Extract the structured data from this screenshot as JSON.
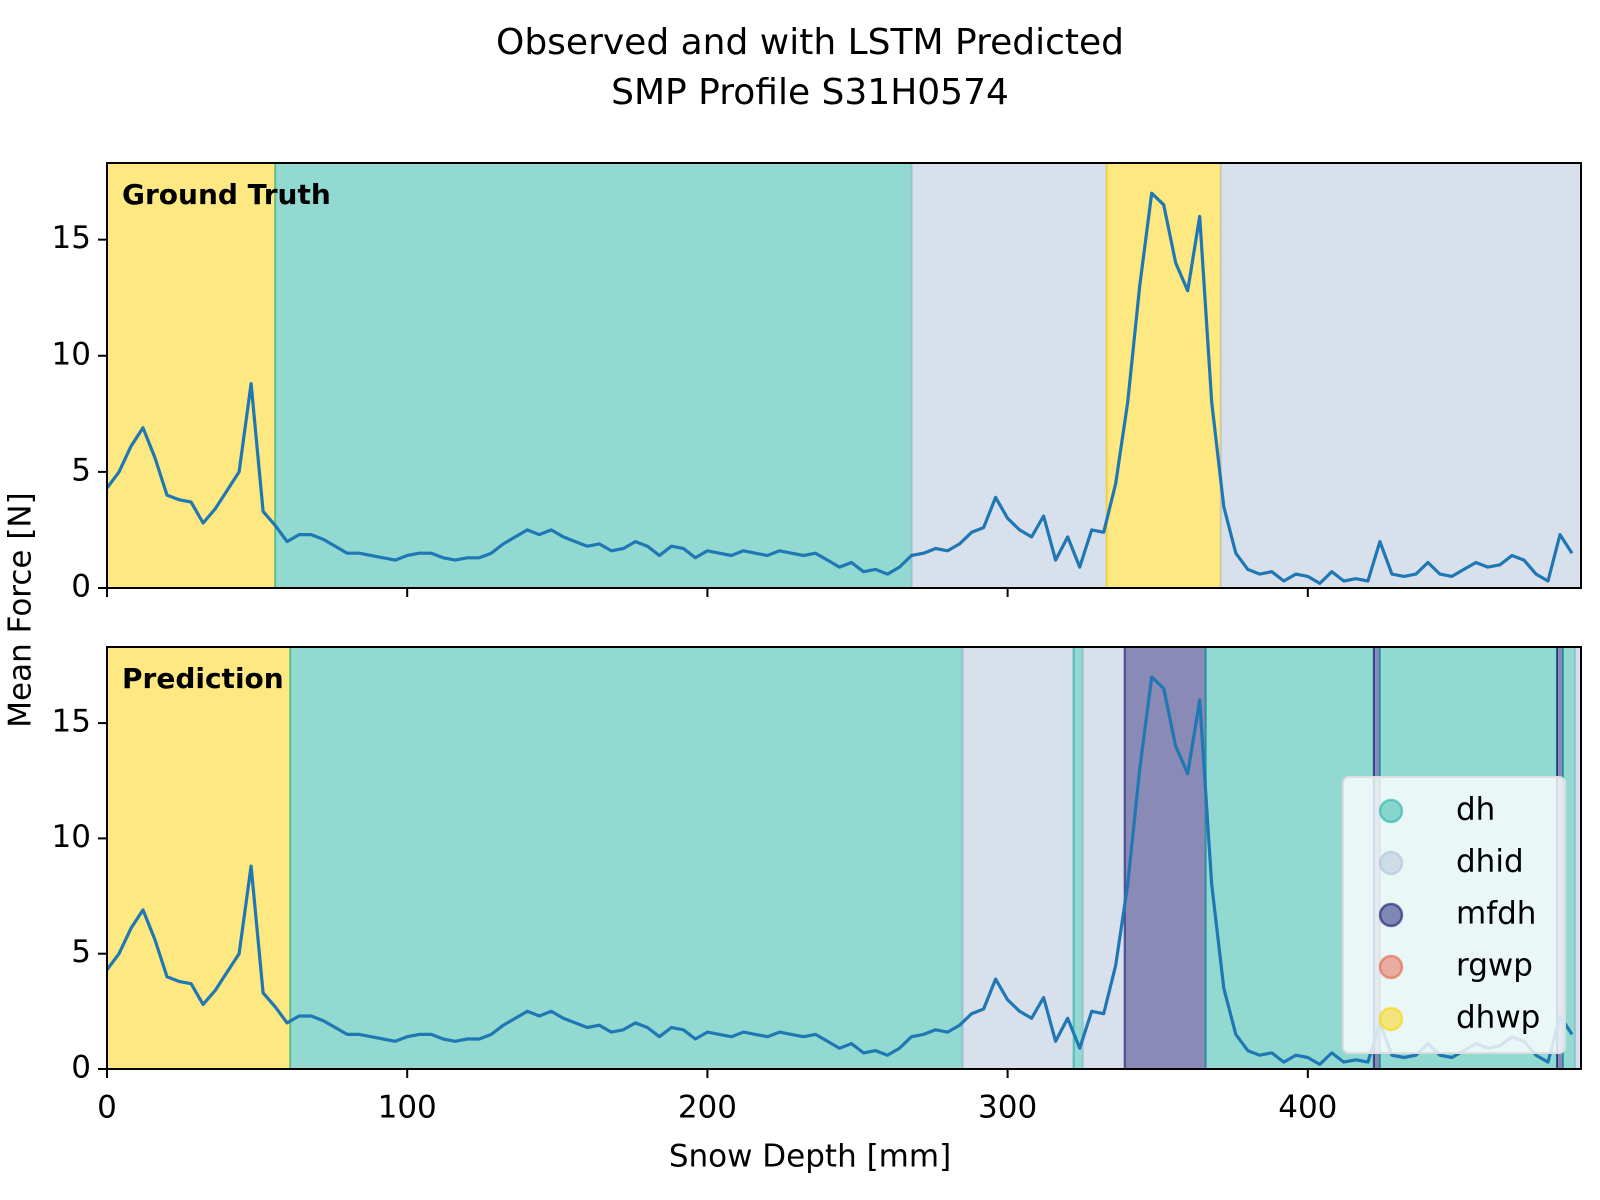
{
  "title": [
    "Observed and with LSTM Predicted",
    "SMP Profile S31H0574"
  ],
  "xlabel": "Snow Depth [mm]",
  "ylabel": "Mean Force [N]",
  "legend": {
    "position": "lower right",
    "alpha": 0.5,
    "entries": [
      {
        "name": "dh",
        "color": "#26b3a6"
      },
      {
        "name": "dhid",
        "color": "#b2c2da"
      },
      {
        "name": "mfdh",
        "color": "#15166f"
      },
      {
        "name": "rgwp",
        "color": "#e8604a"
      },
      {
        "name": "dhwp",
        "color": "#fcd205"
      }
    ]
  },
  "chart_data": [
    {
      "type": "line",
      "label": "Ground Truth",
      "xlim": [
        0,
        491
      ],
      "ylim": [
        0,
        18.3
      ],
      "xticks": [
        0,
        100,
        200,
        300,
        400
      ],
      "yticks": [
        0,
        5,
        10,
        15
      ],
      "xticklabels": false,
      "regions": [
        {
          "class": "dhwp",
          "start": 0,
          "end": 56
        },
        {
          "class": "dh",
          "start": 56,
          "end": 268
        },
        {
          "class": "dhid",
          "start": 268,
          "end": 333
        },
        {
          "class": "dhwp",
          "start": 333,
          "end": 371
        },
        {
          "class": "dhid",
          "start": 371,
          "end": 491
        }
      ],
      "x": [
        0,
        4,
        8,
        12,
        16,
        20,
        24,
        28,
        32,
        36,
        40,
        44,
        48,
        52,
        56,
        60,
        64,
        68,
        72,
        76,
        80,
        84,
        88,
        92,
        96,
        100,
        104,
        108,
        112,
        116,
        120,
        124,
        128,
        132,
        136,
        140,
        144,
        148,
        152,
        156,
        160,
        164,
        168,
        172,
        176,
        180,
        184,
        188,
        192,
        196,
        200,
        204,
        208,
        212,
        216,
        220,
        224,
        228,
        232,
        236,
        240,
        244,
        248,
        252,
        256,
        260,
        264,
        268,
        272,
        276,
        280,
        284,
        288,
        292,
        296,
        300,
        304,
        308,
        312,
        316,
        320,
        324,
        328,
        332,
        336,
        340,
        344,
        348,
        352,
        356,
        360,
        364,
        368,
        372,
        376,
        380,
        384,
        388,
        392,
        396,
        400,
        404,
        408,
        412,
        416,
        420,
        424,
        428,
        432,
        436,
        440,
        444,
        448,
        452,
        456,
        460,
        464,
        468,
        472,
        476,
        480,
        484,
        488
      ],
      "series": [
        {
          "color": "#1f77b4",
          "values": [
            4.3,
            5.0,
            6.1,
            6.9,
            5.6,
            4.0,
            3.8,
            3.7,
            2.8,
            3.4,
            4.2,
            5.0,
            8.8,
            3.3,
            2.7,
            2.0,
            2.3,
            2.3,
            2.1,
            1.8,
            1.5,
            1.5,
            1.4,
            1.3,
            1.2,
            1.4,
            1.5,
            1.5,
            1.3,
            1.2,
            1.3,
            1.3,
            1.5,
            1.9,
            2.2,
            2.5,
            2.3,
            2.5,
            2.2,
            2.0,
            1.8,
            1.9,
            1.6,
            1.7,
            2.0,
            1.8,
            1.4,
            1.8,
            1.7,
            1.3,
            1.6,
            1.5,
            1.4,
            1.6,
            1.5,
            1.4,
            1.6,
            1.5,
            1.4,
            1.5,
            1.2,
            0.9,
            1.1,
            0.7,
            0.8,
            0.6,
            0.9,
            1.4,
            1.5,
            1.7,
            1.6,
            1.9,
            2.4,
            2.6,
            3.9,
            3.0,
            2.5,
            2.2,
            3.1,
            1.2,
            2.2,
            0.9,
            2.5,
            2.4,
            4.5,
            8.0,
            13.0,
            17.0,
            16.5,
            14.0,
            12.8,
            16.0,
            8.0,
            3.5,
            1.5,
            0.8,
            0.6,
            0.7,
            0.3,
            0.6,
            0.5,
            0.2,
            0.7,
            0.3,
            0.4,
            0.3,
            2.0,
            0.6,
            0.5,
            0.6,
            1.1,
            0.6,
            0.5,
            0.8,
            1.1,
            0.9,
            1.0,
            1.4,
            1.2,
            0.6,
            0.3,
            2.3,
            1.5
          ]
        }
      ]
    },
    {
      "type": "line",
      "label": "Prediction",
      "xlim": [
        0,
        491
      ],
      "ylim": [
        0,
        18.3
      ],
      "xticks": [
        0,
        100,
        200,
        300,
        400
      ],
      "yticks": [
        0,
        5,
        10,
        15
      ],
      "xticklabels": true,
      "regions": [
        {
          "class": "dhwp",
          "start": 0,
          "end": 61
        },
        {
          "class": "dh",
          "start": 61,
          "end": 285
        },
        {
          "class": "dhid",
          "start": 285,
          "end": 322
        },
        {
          "class": "dh",
          "start": 322,
          "end": 325
        },
        {
          "class": "dhid",
          "start": 325,
          "end": 339
        },
        {
          "class": "mfdh",
          "start": 339,
          "end": 366
        },
        {
          "class": "dh",
          "start": 366,
          "end": 422
        },
        {
          "class": "mfdh",
          "start": 422,
          "end": 424
        },
        {
          "class": "dh",
          "start": 424,
          "end": 483
        },
        {
          "class": "mfdh",
          "start": 483,
          "end": 485
        },
        {
          "class": "dh",
          "start": 485,
          "end": 489
        },
        {
          "class": "dhid",
          "start": 489,
          "end": 491
        }
      ],
      "x": [
        0,
        4,
        8,
        12,
        16,
        20,
        24,
        28,
        32,
        36,
        40,
        44,
        48,
        52,
        56,
        60,
        64,
        68,
        72,
        76,
        80,
        84,
        88,
        92,
        96,
        100,
        104,
        108,
        112,
        116,
        120,
        124,
        128,
        132,
        136,
        140,
        144,
        148,
        152,
        156,
        160,
        164,
        168,
        172,
        176,
        180,
        184,
        188,
        192,
        196,
        200,
        204,
        208,
        212,
        216,
        220,
        224,
        228,
        232,
        236,
        240,
        244,
        248,
        252,
        256,
        260,
        264,
        268,
        272,
        276,
        280,
        284,
        288,
        292,
        296,
        300,
        304,
        308,
        312,
        316,
        320,
        324,
        328,
        332,
        336,
        340,
        344,
        348,
        352,
        356,
        360,
        364,
        368,
        372,
        376,
        380,
        384,
        388,
        392,
        396,
        400,
        404,
        408,
        412,
        416,
        420,
        424,
        428,
        432,
        436,
        440,
        444,
        448,
        452,
        456,
        460,
        464,
        468,
        472,
        476,
        480,
        484,
        488
      ],
      "series": [
        {
          "color": "#1f77b4",
          "values": [
            4.3,
            5.0,
            6.1,
            6.9,
            5.6,
            4.0,
            3.8,
            3.7,
            2.8,
            3.4,
            4.2,
            5.0,
            8.8,
            3.3,
            2.7,
            2.0,
            2.3,
            2.3,
            2.1,
            1.8,
            1.5,
            1.5,
            1.4,
            1.3,
            1.2,
            1.4,
            1.5,
            1.5,
            1.3,
            1.2,
            1.3,
            1.3,
            1.5,
            1.9,
            2.2,
            2.5,
            2.3,
            2.5,
            2.2,
            2.0,
            1.8,
            1.9,
            1.6,
            1.7,
            2.0,
            1.8,
            1.4,
            1.8,
            1.7,
            1.3,
            1.6,
            1.5,
            1.4,
            1.6,
            1.5,
            1.4,
            1.6,
            1.5,
            1.4,
            1.5,
            1.2,
            0.9,
            1.1,
            0.7,
            0.8,
            0.6,
            0.9,
            1.4,
            1.5,
            1.7,
            1.6,
            1.9,
            2.4,
            2.6,
            3.9,
            3.0,
            2.5,
            2.2,
            3.1,
            1.2,
            2.2,
            0.9,
            2.5,
            2.4,
            4.5,
            8.0,
            13.0,
            17.0,
            16.5,
            14.0,
            12.8,
            16.0,
            8.0,
            3.5,
            1.5,
            0.8,
            0.6,
            0.7,
            0.3,
            0.6,
            0.5,
            0.2,
            0.7,
            0.3,
            0.4,
            0.3,
            2.0,
            0.6,
            0.5,
            0.6,
            1.1,
            0.6,
            0.5,
            0.8,
            1.1,
            0.9,
            1.0,
            1.4,
            1.2,
            0.6,
            0.3,
            2.3,
            1.5
          ]
        }
      ]
    }
  ]
}
